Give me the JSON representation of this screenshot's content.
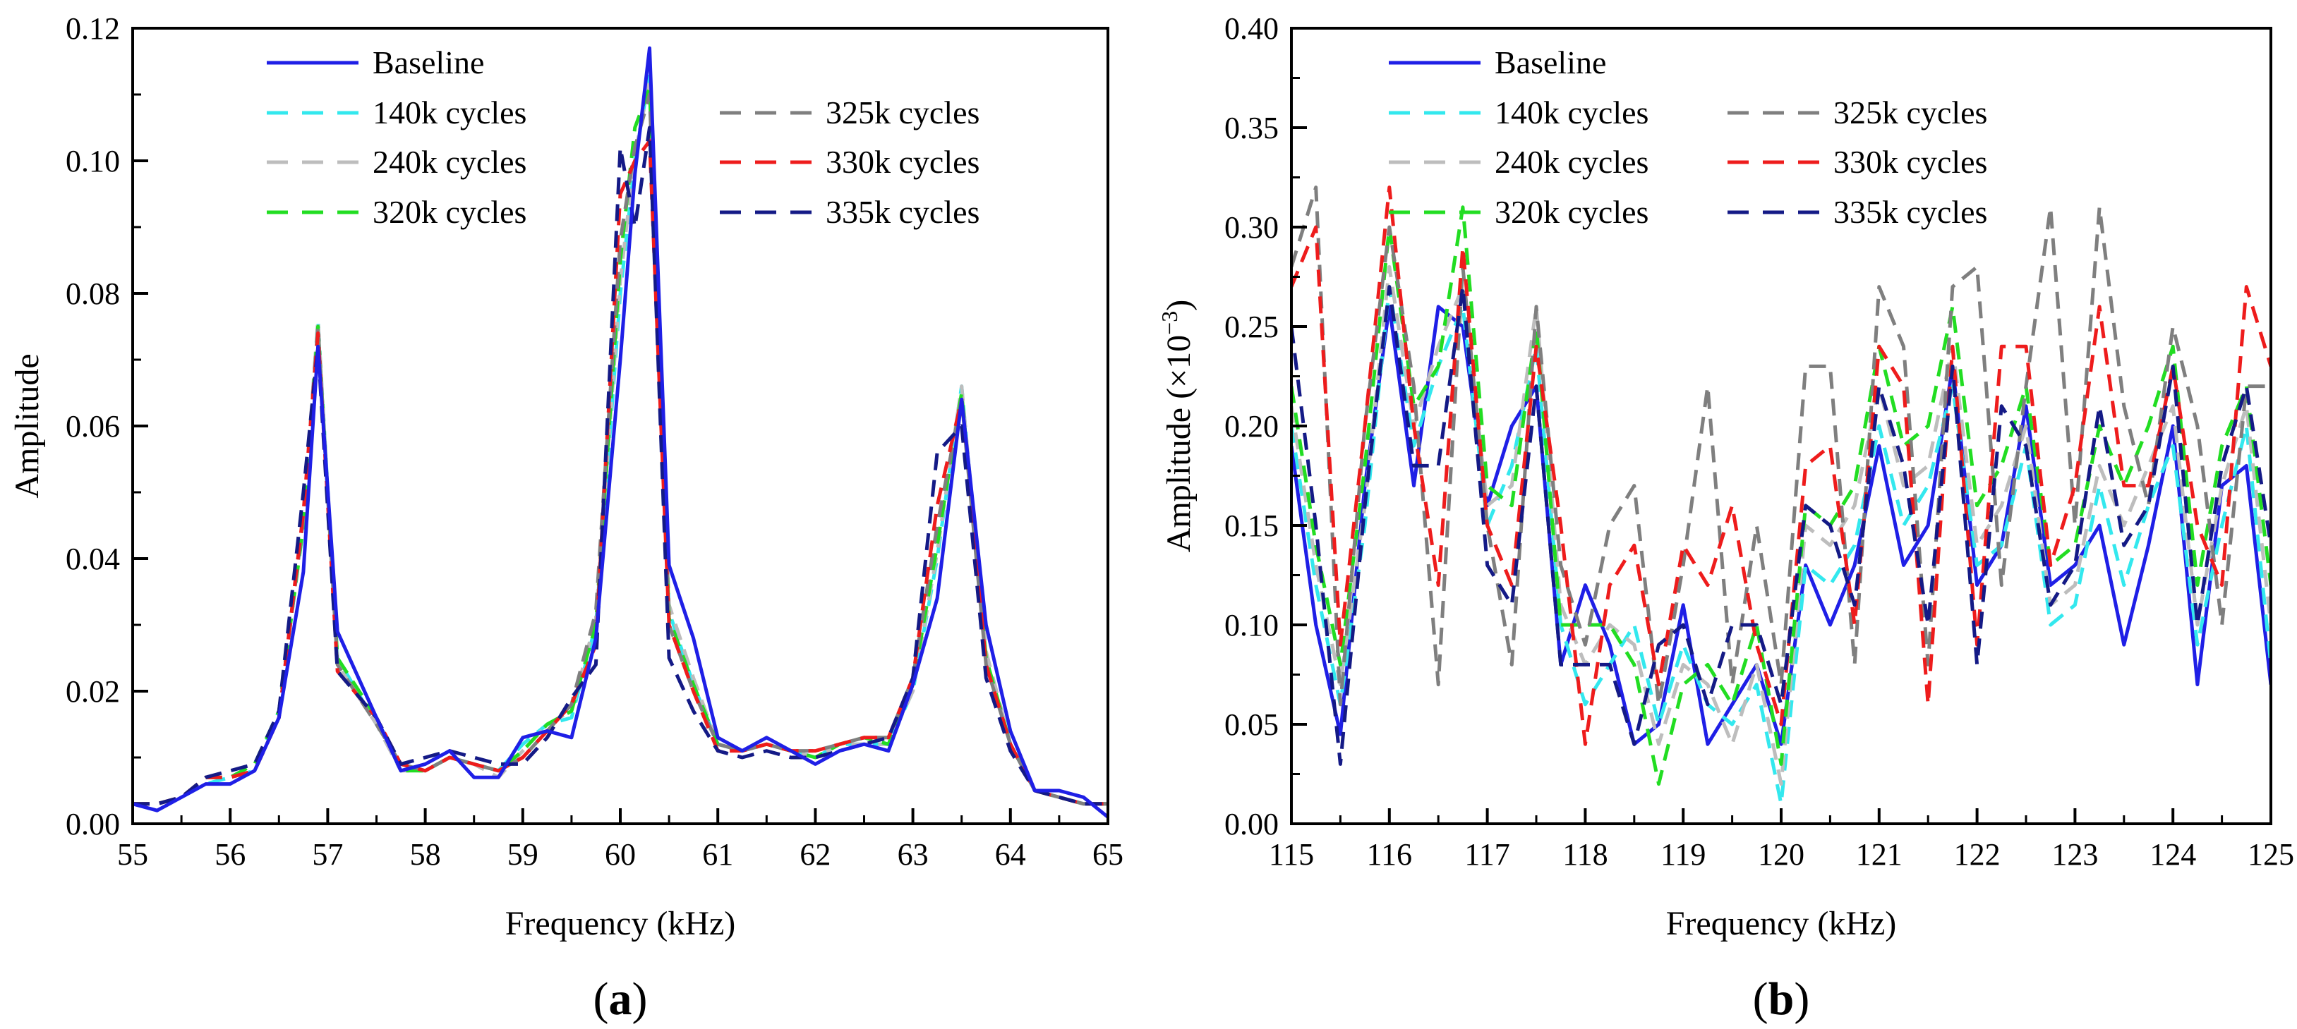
{
  "colors": {
    "baseline": "#1f1fe6",
    "c140": "#33e8ee",
    "c240": "#bdbdbd",
    "c320": "#22dd22",
    "c325": "#7f7f7f",
    "c330": "#ee1c1c",
    "c335": "#141a86"
  },
  "chart_data": [
    {
      "type": "line",
      "panel_label": "(a)",
      "xlabel": "Frequency (kHz)",
      "ylabel": "Amplitude",
      "xlim": [
        55,
        65
      ],
      "ylim": [
        0,
        0.12
      ],
      "xticks": [
        "55",
        "56",
        "57",
        "58",
        "59",
        "60",
        "61",
        "62",
        "63",
        "64",
        "65"
      ],
      "yticks": [
        "0.00",
        "0.02",
        "0.04",
        "0.06",
        "0.08",
        "0.10",
        "0.12"
      ],
      "legend_position": "top",
      "x": [
        55.0,
        55.25,
        55.5,
        55.75,
        56.0,
        56.25,
        56.5,
        56.75,
        56.9,
        57.1,
        57.5,
        57.75,
        58.0,
        58.25,
        58.5,
        58.75,
        59.0,
        59.25,
        59.5,
        59.75,
        60.0,
        60.15,
        60.3,
        60.5,
        60.75,
        61.0,
        61.25,
        61.5,
        61.75,
        62.0,
        62.25,
        62.5,
        62.75,
        63.0,
        63.25,
        63.5,
        63.75,
        64.0,
        64.25,
        64.5,
        64.75,
        65.0
      ],
      "series": [
        {
          "name": "Baseline",
          "key": "baseline",
          "dash": "solid",
          "values": [
            0.003,
            0.002,
            0.004,
            0.006,
            0.006,
            0.008,
            0.016,
            0.038,
            0.072,
            0.029,
            0.016,
            0.008,
            0.009,
            0.011,
            0.007,
            0.007,
            0.013,
            0.014,
            0.013,
            0.028,
            0.07,
            0.098,
            0.117,
            0.039,
            0.028,
            0.013,
            0.011,
            0.013,
            0.011,
            0.009,
            0.011,
            0.012,
            0.011,
            0.021,
            0.034,
            0.064,
            0.03,
            0.014,
            0.005,
            0.005,
            0.004,
            0.001
          ]
        },
        {
          "name": "140k cycles",
          "key": "c140",
          "dash": "dash",
          "values": [
            0.003,
            0.003,
            0.004,
            0.006,
            0.007,
            0.008,
            0.017,
            0.045,
            0.076,
            0.025,
            0.015,
            0.009,
            0.008,
            0.01,
            0.009,
            0.008,
            0.012,
            0.015,
            0.016,
            0.03,
            0.08,
            0.1,
            0.113,
            0.032,
            0.021,
            0.012,
            0.011,
            0.012,
            0.011,
            0.01,
            0.012,
            0.012,
            0.012,
            0.02,
            0.04,
            0.066,
            0.025,
            0.012,
            0.005,
            0.004,
            0.003,
            0.003
          ]
        },
        {
          "name": "240k cycles",
          "key": "c240",
          "dash": "dash",
          "values": [
            0.003,
            0.003,
            0.004,
            0.007,
            0.007,
            0.009,
            0.017,
            0.046,
            0.076,
            0.024,
            0.015,
            0.008,
            0.008,
            0.01,
            0.009,
            0.007,
            0.011,
            0.015,
            0.017,
            0.031,
            0.082,
            0.101,
            0.112,
            0.033,
            0.022,
            0.012,
            0.011,
            0.012,
            0.011,
            0.01,
            0.012,
            0.012,
            0.012,
            0.02,
            0.041,
            0.066,
            0.026,
            0.012,
            0.005,
            0.004,
            0.003,
            0.003
          ]
        },
        {
          "name": "320k cycles",
          "key": "c320",
          "dash": "dash",
          "values": [
            0.003,
            0.003,
            0.004,
            0.007,
            0.007,
            0.009,
            0.017,
            0.045,
            0.075,
            0.025,
            0.016,
            0.008,
            0.008,
            0.01,
            0.009,
            0.008,
            0.011,
            0.015,
            0.017,
            0.03,
            0.085,
            0.105,
            0.111,
            0.031,
            0.021,
            0.012,
            0.011,
            0.012,
            0.011,
            0.01,
            0.012,
            0.013,
            0.012,
            0.021,
            0.042,
            0.065,
            0.025,
            0.012,
            0.005,
            0.004,
            0.003,
            0.003
          ]
        },
        {
          "name": "325k cycles",
          "key": "c325",
          "dash": "dash",
          "values": [
            0.003,
            0.003,
            0.004,
            0.007,
            0.007,
            0.008,
            0.016,
            0.046,
            0.075,
            0.024,
            0.015,
            0.009,
            0.008,
            0.01,
            0.009,
            0.008,
            0.01,
            0.014,
            0.018,
            0.032,
            0.088,
            0.102,
            0.11,
            0.03,
            0.02,
            0.012,
            0.011,
            0.012,
            0.011,
            0.011,
            0.012,
            0.013,
            0.013,
            0.022,
            0.045,
            0.064,
            0.024,
            0.012,
            0.005,
            0.004,
            0.003,
            0.003
          ]
        },
        {
          "name": "330k cycles",
          "key": "c330",
          "dash": "dash",
          "values": [
            0.003,
            0.003,
            0.004,
            0.007,
            0.007,
            0.008,
            0.016,
            0.047,
            0.074,
            0.023,
            0.016,
            0.009,
            0.008,
            0.01,
            0.009,
            0.008,
            0.01,
            0.014,
            0.018,
            0.027,
            0.095,
            0.1,
            0.103,
            0.03,
            0.02,
            0.011,
            0.011,
            0.012,
            0.011,
            0.011,
            0.012,
            0.013,
            0.013,
            0.022,
            0.048,
            0.064,
            0.024,
            0.012,
            0.005,
            0.004,
            0.003,
            0.003
          ]
        },
        {
          "name": "335k cycles",
          "key": "c335",
          "dash": "dash",
          "values": [
            0.003,
            0.003,
            0.004,
            0.007,
            0.008,
            0.009,
            0.017,
            0.05,
            0.072,
            0.023,
            0.016,
            0.009,
            0.01,
            0.011,
            0.01,
            0.009,
            0.009,
            0.013,
            0.019,
            0.024,
            0.102,
            0.09,
            0.105,
            0.025,
            0.017,
            0.011,
            0.01,
            0.011,
            0.01,
            0.01,
            0.011,
            0.012,
            0.013,
            0.022,
            0.056,
            0.06,
            0.022,
            0.011,
            0.005,
            0.004,
            0.003,
            0.003
          ]
        }
      ]
    },
    {
      "type": "line",
      "panel_label": "(b)",
      "xlabel": "Frequency (kHz)",
      "ylabel": "Amplitude (×10",
      "ylabel_sup": "−3",
      "ylabel_end": ")",
      "xlim": [
        115,
        125
      ],
      "ylim": [
        0,
        0.4
      ],
      "xticks": [
        "115",
        "116",
        "117",
        "118",
        "119",
        "120",
        "121",
        "122",
        "123",
        "124",
        "125"
      ],
      "yticks": [
        "0.00",
        "0.05",
        "0.10",
        "0.15",
        "0.20",
        "0.25",
        "0.30",
        "0.35",
        "0.40"
      ],
      "legend_position": "top",
      "x": [
        115.0,
        115.25,
        115.5,
        115.75,
        116.0,
        116.25,
        116.5,
        116.75,
        117.0,
        117.25,
        117.5,
        117.75,
        118.0,
        118.25,
        118.5,
        118.75,
        119.0,
        119.25,
        119.5,
        119.75,
        120.0,
        120.25,
        120.5,
        120.75,
        121.0,
        121.25,
        121.5,
        121.75,
        122.0,
        122.25,
        122.5,
        122.75,
        123.0,
        123.25,
        123.5,
        123.75,
        124.0,
        124.25,
        124.5,
        124.75,
        125.0
      ],
      "series": [
        {
          "name": "Baseline",
          "key": "baseline",
          "dash": "solid",
          "values": [
            0.19,
            0.1,
            0.045,
            0.17,
            0.26,
            0.17,
            0.26,
            0.25,
            0.16,
            0.2,
            0.22,
            0.08,
            0.12,
            0.09,
            0.04,
            0.05,
            0.11,
            0.04,
            0.06,
            0.08,
            0.04,
            0.13,
            0.1,
            0.13,
            0.19,
            0.13,
            0.15,
            0.23,
            0.12,
            0.14,
            0.21,
            0.12,
            0.13,
            0.15,
            0.09,
            0.14,
            0.2,
            0.07,
            0.17,
            0.18,
            0.07
          ]
        },
        {
          "name": "140k cycles",
          "key": "c140",
          "dash": "dash",
          "values": [
            0.2,
            0.12,
            0.06,
            0.15,
            0.27,
            0.19,
            0.23,
            0.26,
            0.15,
            0.18,
            0.24,
            0.1,
            0.06,
            0.08,
            0.1,
            0.05,
            0.09,
            0.06,
            0.05,
            0.07,
            0.01,
            0.13,
            0.12,
            0.14,
            0.2,
            0.15,
            0.17,
            0.22,
            0.13,
            0.14,
            0.19,
            0.1,
            0.11,
            0.17,
            0.12,
            0.16,
            0.19,
            0.09,
            0.15,
            0.2,
            0.08
          ]
        },
        {
          "name": "240k cycles",
          "key": "c240",
          "dash": "dash",
          "values": [
            0.21,
            0.13,
            0.07,
            0.16,
            0.28,
            0.2,
            0.24,
            0.27,
            0.16,
            0.17,
            0.26,
            0.11,
            0.08,
            0.1,
            0.09,
            0.04,
            0.08,
            0.07,
            0.04,
            0.08,
            0.02,
            0.15,
            0.14,
            0.16,
            0.22,
            0.17,
            0.18,
            0.24,
            0.14,
            0.16,
            0.2,
            0.11,
            0.12,
            0.18,
            0.15,
            0.18,
            0.21,
            0.1,
            0.17,
            0.21,
            0.1
          ]
        },
        {
          "name": "320k cycles",
          "key": "c320",
          "dash": "dash",
          "values": [
            0.22,
            0.14,
            0.08,
            0.18,
            0.3,
            0.21,
            0.23,
            0.31,
            0.17,
            0.16,
            0.25,
            0.1,
            0.1,
            0.1,
            0.08,
            0.02,
            0.07,
            0.08,
            0.06,
            0.1,
            0.03,
            0.16,
            0.15,
            0.17,
            0.24,
            0.19,
            0.2,
            0.26,
            0.16,
            0.18,
            0.22,
            0.13,
            0.14,
            0.2,
            0.17,
            0.2,
            0.24,
            0.12,
            0.19,
            0.22,
            0.12
          ]
        },
        {
          "name": "325k cycles",
          "key": "c325",
          "dash": "dash",
          "values": [
            0.28,
            0.32,
            0.06,
            0.2,
            0.3,
            0.22,
            0.07,
            0.28,
            0.15,
            0.08,
            0.26,
            0.13,
            0.09,
            0.15,
            0.17,
            0.06,
            0.13,
            0.22,
            0.07,
            0.15,
            0.07,
            0.23,
            0.23,
            0.08,
            0.27,
            0.24,
            0.08,
            0.27,
            0.28,
            0.12,
            0.22,
            0.31,
            0.15,
            0.31,
            0.21,
            0.16,
            0.25,
            0.2,
            0.1,
            0.22,
            0.22
          ]
        },
        {
          "name": "330k cycles",
          "key": "c330",
          "dash": "dash",
          "values": [
            0.27,
            0.3,
            0.09,
            0.2,
            0.32,
            0.2,
            0.12,
            0.29,
            0.15,
            0.12,
            0.24,
            0.15,
            0.04,
            0.12,
            0.14,
            0.07,
            0.14,
            0.12,
            0.16,
            0.09,
            0.05,
            0.18,
            0.19,
            0.1,
            0.24,
            0.22,
            0.06,
            0.24,
            0.09,
            0.24,
            0.24,
            0.13,
            0.17,
            0.26,
            0.17,
            0.17,
            0.23,
            0.15,
            0.12,
            0.27,
            0.23
          ]
        },
        {
          "name": "335k cycles",
          "key": "c335",
          "dash": "dash",
          "values": [
            0.25,
            0.15,
            0.03,
            0.16,
            0.27,
            0.18,
            0.18,
            0.27,
            0.13,
            0.11,
            0.22,
            0.08,
            0.08,
            0.08,
            0.04,
            0.09,
            0.1,
            0.06,
            0.1,
            0.1,
            0.06,
            0.16,
            0.15,
            0.11,
            0.22,
            0.18,
            0.1,
            0.23,
            0.08,
            0.21,
            0.19,
            0.11,
            0.13,
            0.21,
            0.14,
            0.16,
            0.23,
            0.1,
            0.18,
            0.22,
            0.14
          ]
        }
      ]
    }
  ]
}
